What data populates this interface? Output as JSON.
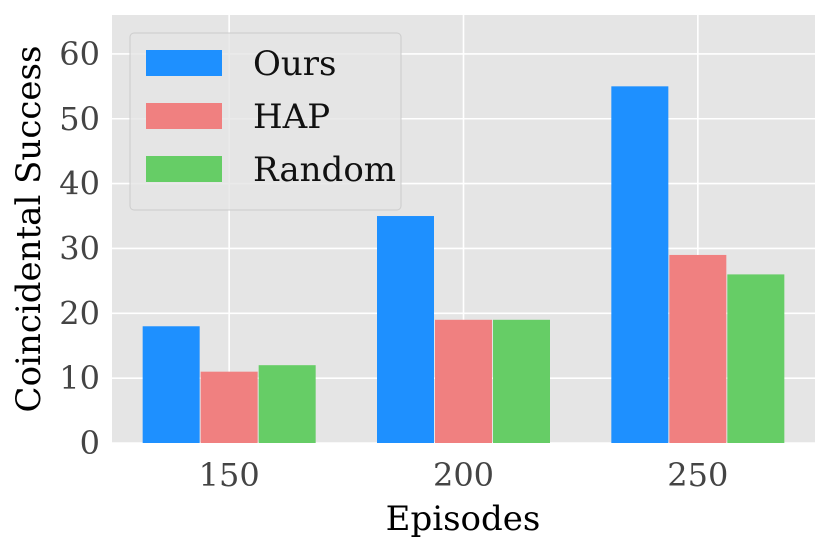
{
  "chart_data": {
    "type": "bar",
    "title": "",
    "xlabel": "Episodes",
    "ylabel": "Coincidental Success",
    "categories": [
      "150",
      "200",
      "250"
    ],
    "series": [
      {
        "name": "Ours",
        "values": [
          18,
          35,
          55
        ],
        "color": "#1e90ff"
      },
      {
        "name": "HAP",
        "values": [
          11,
          19,
          29
        ],
        "color": "#f08080"
      },
      {
        "name": "Random",
        "values": [
          12,
          19,
          26
        ],
        "color": "#66cd66"
      }
    ],
    "ylim": [
      0,
      66
    ],
    "yticks": [
      0,
      10,
      20,
      30,
      40,
      50,
      60
    ],
    "grid": true,
    "legend": "top-left",
    "background_color": "#e5e5e5",
    "grid_color": "#ffffff"
  }
}
